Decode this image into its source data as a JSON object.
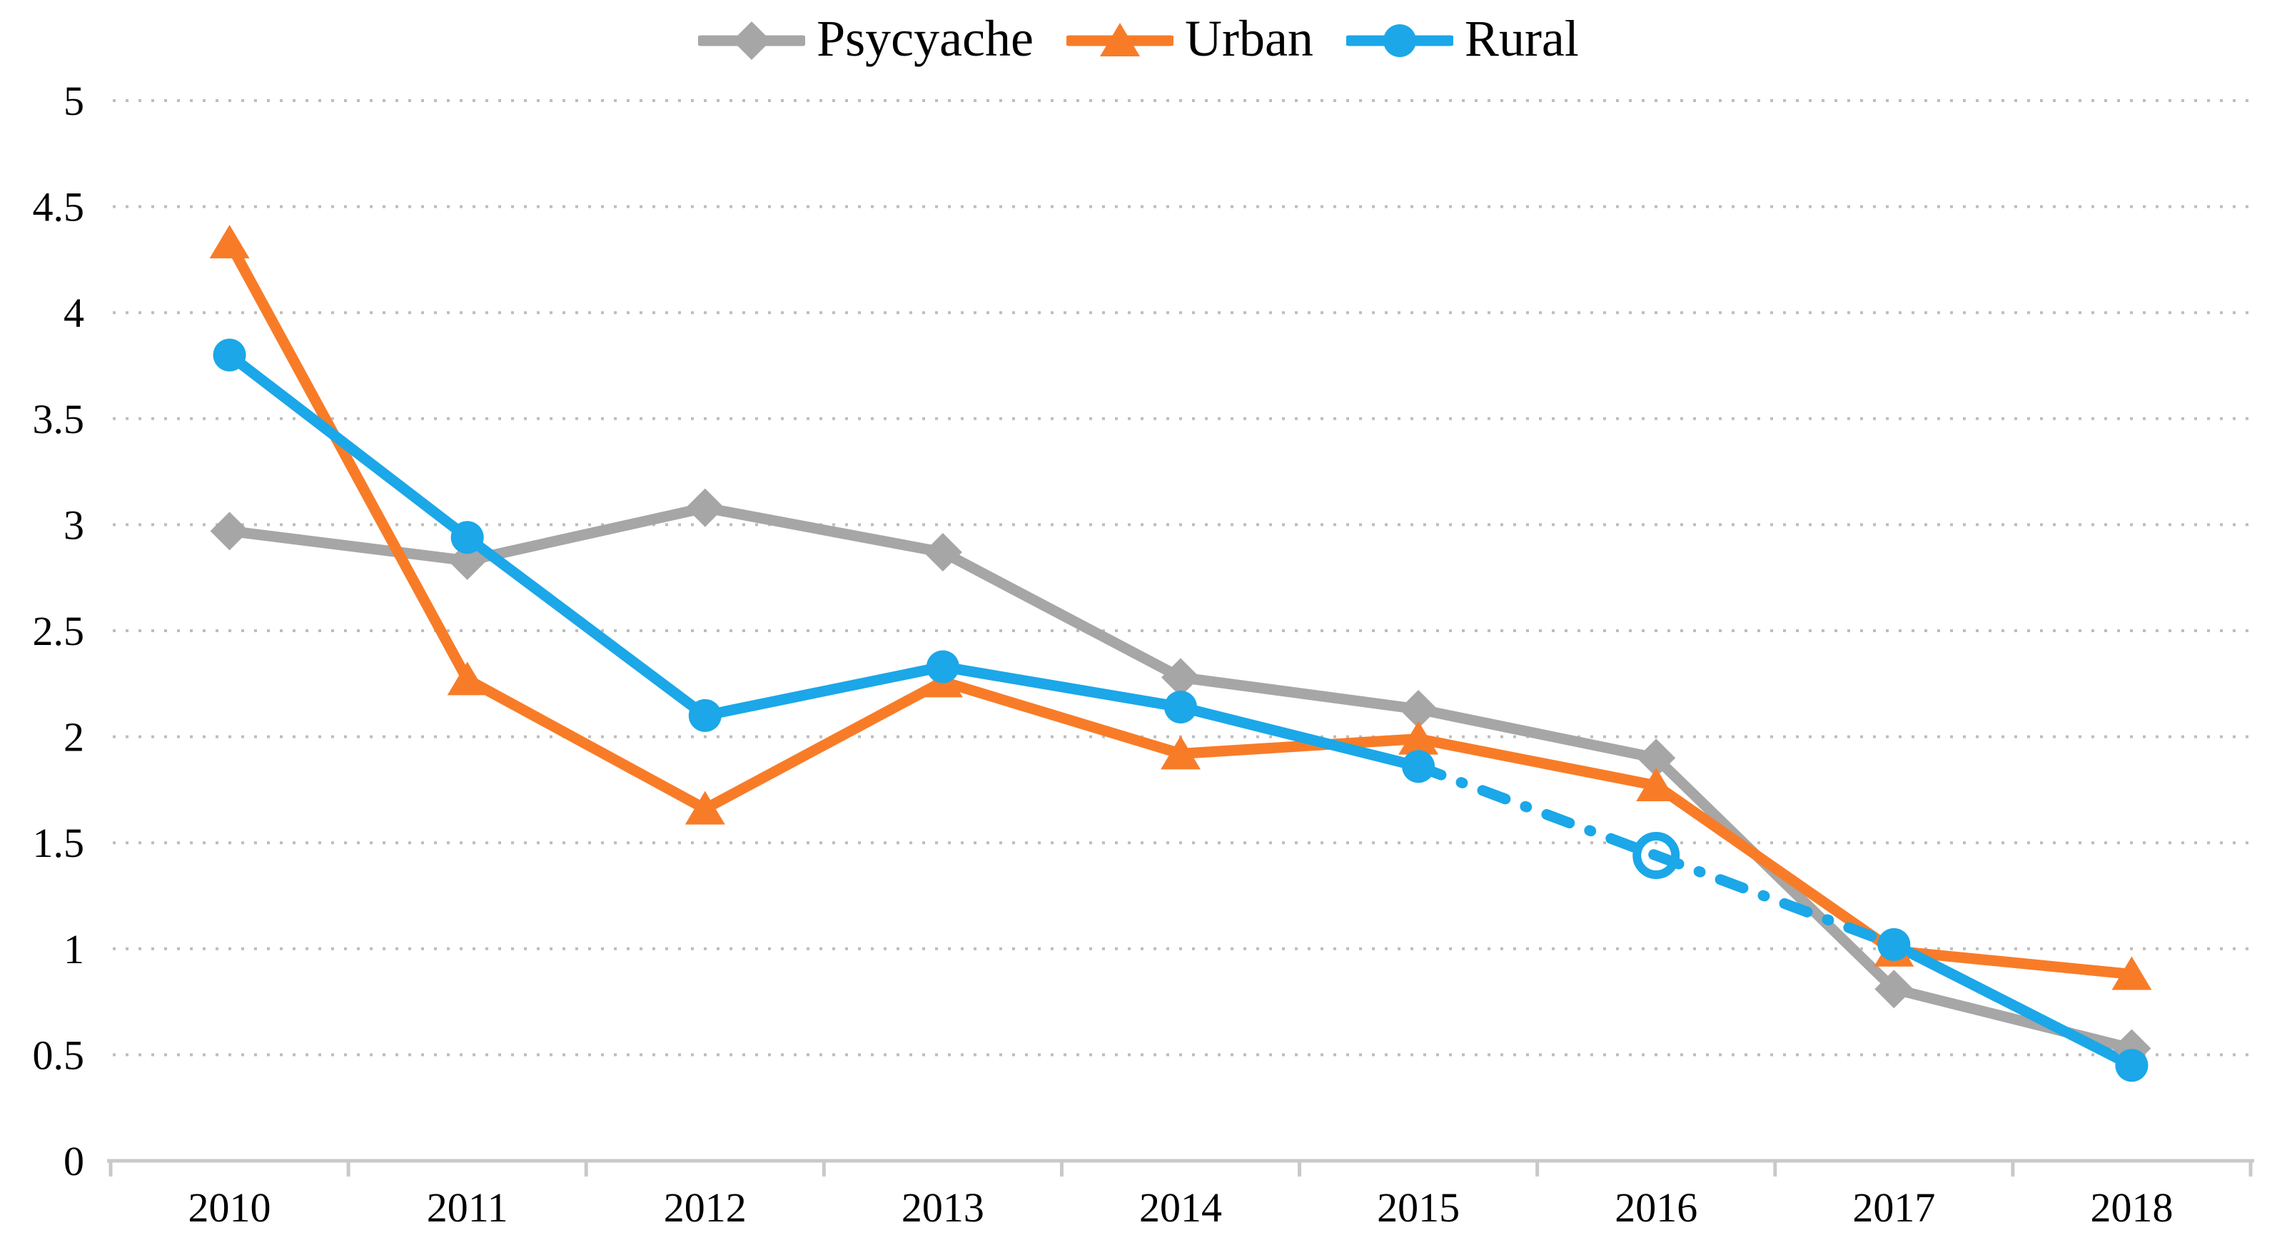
{
  "chart_data": {
    "type": "line",
    "title": "",
    "xlabel": "",
    "ylabel": "",
    "categories": [
      "2010",
      "2011",
      "2012",
      "2013",
      "2014",
      "2015",
      "2016",
      "2017",
      "2018"
    ],
    "series": [
      {
        "name": "Psycyache",
        "color": "#A6A6A6",
        "marker": "diamond",
        "values": [
          2.97,
          2.83,
          3.08,
          2.87,
          2.28,
          2.13,
          1.9,
          0.81,
          0.53
        ]
      },
      {
        "name": "Urban",
        "color": "#F87C28",
        "marker": "triangle",
        "values": [
          4.33,
          2.27,
          1.66,
          2.26,
          1.92,
          1.99,
          1.77,
          0.99,
          0.88
        ]
      },
      {
        "name": "Rural",
        "color": "#1BA7E8",
        "marker": "circle",
        "values": [
          3.8,
          2.94,
          2.1,
          2.33,
          2.14,
          1.86,
          1.44,
          1.02,
          0.45
        ],
        "dashdot_segment_start_indices": [
          5,
          6
        ],
        "open_marker_indices": [
          6
        ]
      }
    ],
    "ylim": [
      0,
      5
    ],
    "ytick_labels": [
      "0",
      "0.5",
      "1",
      "1.5",
      "2",
      "2.5",
      "3",
      "3.5",
      "4",
      "4.5",
      "5"
    ],
    "grid": "dotted horizontal",
    "legend_position": "top-center",
    "axis_line_color": "#C9C9C9",
    "grid_color": "#BDBDBD",
    "text_color": "#000000"
  }
}
